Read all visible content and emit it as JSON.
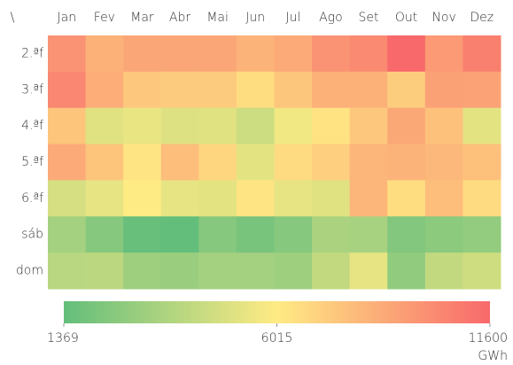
{
  "chart_data": {
    "type": "heatmap",
    "corner": "\\",
    "categories": [
      "Jan",
      "Fev",
      "Mar",
      "Abr",
      "Mai",
      "Jun",
      "Jul",
      "Ago",
      "Set",
      "Out",
      "Nov",
      "Dez"
    ],
    "rows": [
      "2.ªf",
      "3.ªf",
      "4.ªf",
      "5.ªf",
      "6.ªf",
      "sáb",
      "dom"
    ],
    "values": [
      [
        9800,
        8500,
        9000,
        9000,
        9000,
        8400,
        8800,
        9800,
        10200,
        11600,
        9500,
        10600
      ],
      [
        10300,
        8700,
        7500,
        7400,
        7400,
        6600,
        7600,
        8500,
        8500,
        7300,
        9200,
        9100
      ],
      [
        7700,
        5100,
        5400,
        5000,
        5100,
        4500,
        5600,
        6400,
        7500,
        8900,
        7800,
        5200
      ],
      [
        8800,
        7700,
        6300,
        8000,
        6900,
        5200,
        6700,
        7200,
        8300,
        8400,
        8200,
        7800
      ],
      [
        4800,
        5300,
        6000,
        5300,
        5200,
        6300,
        5300,
        5100,
        8300,
        6600,
        8000,
        6700
      ],
      [
        3300,
        2400,
        1500,
        1400,
        2400,
        2000,
        2400,
        3500,
        3400,
        2300,
        2600,
        2800
      ],
      [
        3900,
        4000,
        3100,
        3000,
        3300,
        3300,
        3100,
        4200,
        5300,
        2700,
        4200,
        4600
      ]
    ],
    "colorscale": {
      "min": 1369,
      "mid": 6015,
      "max": 11600,
      "colors": [
        "#63be7b",
        "#ffeb84",
        "#f8696b"
      ]
    },
    "colorbar_ticks": [
      1369,
      6015,
      11600
    ],
    "colorbar_label": "GWh"
  }
}
